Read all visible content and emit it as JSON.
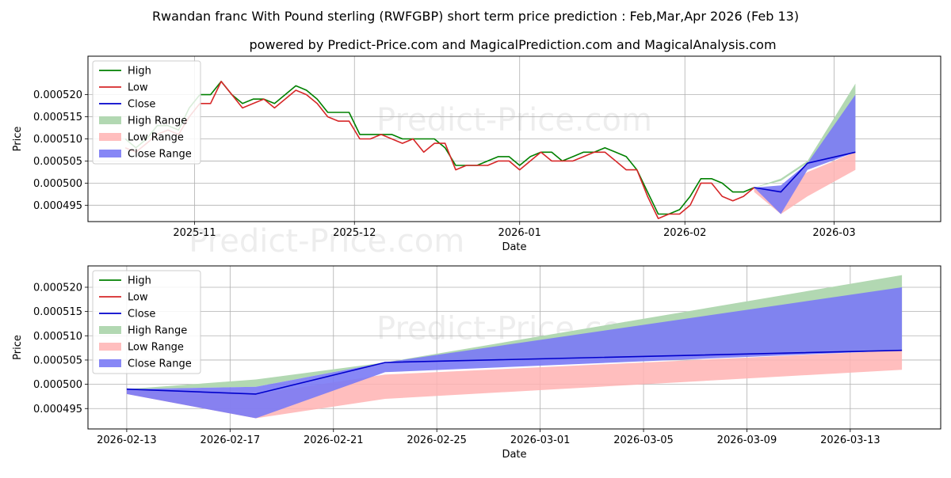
{
  "title": "Rwandan franc With Pound sterling (RWFGBP) short term price prediction : Feb,Mar,Apr 2026 (Feb 13)",
  "subtitle": "powered by Predict-Price.com and MagicalPrediction.com and MagicalAnalysis.com",
  "watermark": "Predict-Price.com",
  "colors": {
    "high": "#008000",
    "low": "#d62728",
    "close": "#0000cc",
    "high_range": "#b2d8b2",
    "low_range": "#ffb3b3",
    "close_range": "#7a7af5"
  },
  "chart_data": [
    {
      "type": "line",
      "name": "history-and-forecast",
      "xlabel": "Date",
      "ylabel": "Price",
      "x_ticks": [
        "2025-11",
        "2025-12",
        "2026-01",
        "2026-02",
        "2026-03"
      ],
      "x_tick_days": [
        20,
        50,
        81,
        112,
        140
      ],
      "y_ticks": [
        "0.000495",
        "0.000500",
        "0.000505",
        "0.000510",
        "0.000515",
        "0.000520"
      ],
      "y_tick_values": [
        0.000495,
        0.0005,
        0.000505,
        0.00051,
        0.000515,
        0.00052
      ],
      "xlim_days": [
        0,
        160
      ],
      "ylim": [
        0.0004913,
        0.0005287
      ],
      "x_note": "x values are days since 2025-10-12",
      "legend": [
        "High",
        "Low",
        "Close",
        "High Range",
        "Low Range",
        "Close Range"
      ],
      "legend_position": "upper left",
      "grid": true,
      "series": [
        {
          "name": "High",
          "x": [
            7,
            9,
            11,
            13,
            15,
            17,
            19,
            21,
            23,
            25,
            27,
            29,
            31,
            33,
            35,
            37,
            39,
            41,
            43,
            45,
            47,
            49,
            51,
            53,
            55,
            57,
            59,
            61,
            63,
            65,
            67,
            69,
            71,
            73,
            75,
            77,
            79,
            81,
            83,
            85,
            87,
            89,
            91,
            93,
            95,
            97,
            99,
            101,
            103,
            105,
            107,
            109,
            111,
            113,
            115,
            117,
            119,
            121,
            123,
            125
          ],
          "y": [
            0.00051,
            0.000508,
            0.00051,
            0.000513,
            0.000513,
            0.000512,
            0.000517,
            0.00052,
            0.00052,
            0.000523,
            0.00052,
            0.000518,
            0.000519,
            0.000519,
            0.000518,
            0.00052,
            0.000522,
            0.000521,
            0.000519,
            0.000516,
            0.000516,
            0.000516,
            0.000511,
            0.000511,
            0.000511,
            0.000511,
            0.00051,
            0.00051,
            0.00051,
            0.00051,
            0.000508,
            0.000504,
            0.000504,
            0.000504,
            0.000505,
            0.000506,
            0.000506,
            0.000504,
            0.000506,
            0.000507,
            0.000507,
            0.000505,
            0.000506,
            0.000507,
            0.000507,
            0.000508,
            0.000507,
            0.000506,
            0.000503,
            0.000498,
            0.000493,
            0.000493,
            0.000494,
            0.000497,
            0.000501,
            0.000501,
            0.0005,
            0.000498,
            0.000498,
            0.000499
          ]
        },
        {
          "name": "Low",
          "x": [
            7,
            9,
            11,
            13,
            15,
            17,
            19,
            21,
            23,
            25,
            27,
            29,
            31,
            33,
            35,
            37,
            39,
            41,
            43,
            45,
            47,
            49,
            51,
            53,
            55,
            57,
            59,
            61,
            63,
            65,
            67,
            69,
            71,
            73,
            75,
            77,
            79,
            81,
            83,
            85,
            87,
            89,
            91,
            93,
            95,
            97,
            99,
            101,
            103,
            105,
            107,
            109,
            111,
            113,
            115,
            117,
            119,
            121,
            123,
            125
          ],
          "y": [
            0.000508,
            0.000507,
            0.000509,
            0.000511,
            0.000512,
            0.000511,
            0.000515,
            0.000518,
            0.000518,
            0.000523,
            0.00052,
            0.000517,
            0.000518,
            0.000519,
            0.000517,
            0.000519,
            0.000521,
            0.00052,
            0.000518,
            0.000515,
            0.000514,
            0.000514,
            0.00051,
            0.00051,
            0.000511,
            0.00051,
            0.000509,
            0.00051,
            0.000507,
            0.000509,
            0.000509,
            0.000503,
            0.000504,
            0.000504,
            0.000504,
            0.000505,
            0.000505,
            0.000503,
            0.000505,
            0.000507,
            0.000505,
            0.000505,
            0.000505,
            0.000506,
            0.000507,
            0.000507,
            0.000505,
            0.000503,
            0.000503,
            0.000497,
            0.000492,
            0.000493,
            0.000493,
            0.000495,
            0.0005,
            0.0005,
            0.000497,
            0.000496,
            0.000497,
            0.000499
          ]
        },
        {
          "name": "Close",
          "x": [
            125,
            130,
            135,
            144
          ],
          "y": [
            0.000499,
            0.000498,
            0.0005045,
            0.000507
          ]
        }
      ],
      "ranges": [
        {
          "name": "High Range",
          "x": [
            125,
            130,
            135,
            144
          ],
          "lower": [
            0.000499,
            0.0005005,
            0.0005045,
            0.000507
          ],
          "upper": [
            0.000499,
            0.000501,
            0.000505,
            0.0005225
          ]
        },
        {
          "name": "Low Range",
          "x": [
            125,
            130,
            135,
            144
          ],
          "lower": [
            0.000498,
            0.000493,
            0.000497,
            0.000503
          ],
          "upper": [
            0.000499,
            0.0004985,
            0.0005025,
            0.000507
          ]
        },
        {
          "name": "Close Range",
          "x": [
            125,
            130,
            135,
            144
          ],
          "lower": [
            0.000499,
            0.000493,
            0.000503,
            0.000507
          ],
          "upper": [
            0.000499,
            0.0004995,
            0.0005045,
            0.00052
          ]
        }
      ]
    },
    {
      "type": "line",
      "name": "forecast-zoom",
      "xlabel": "Date",
      "ylabel": "Price",
      "x_ticks": [
        "2026-02-13",
        "2026-02-17",
        "2026-02-21",
        "2026-02-25",
        "2026-03-01",
        "2026-03-05",
        "2026-03-09",
        "2026-03-13"
      ],
      "x_tick_days": [
        0,
        4,
        8,
        12,
        16,
        20,
        24,
        28
      ],
      "y_ticks": [
        "0.000495",
        "0.000500",
        "0.000505",
        "0.000510",
        "0.000515",
        "0.000520"
      ],
      "y_tick_values": [
        0.000495,
        0.0005,
        0.000505,
        0.00051,
        0.000515,
        0.00052
      ],
      "xlim_days": [
        -1.5,
        31.5
      ],
      "ylim": [
        0.0004908,
        0.0005244
      ],
      "x_note": "x values are days since 2026-02-13",
      "legend": [
        "High",
        "Low",
        "Close",
        "High Range",
        "Low Range",
        "Close Range"
      ],
      "legend_position": "upper left",
      "grid": true,
      "series": [
        {
          "name": "Close",
          "x": [
            0,
            5,
            10,
            30
          ],
          "y": [
            0.000499,
            0.000498,
            0.0005045,
            0.000507
          ]
        }
      ],
      "ranges": [
        {
          "name": "High Range",
          "x": [
            0,
            5,
            10,
            30
          ],
          "lower": [
            0.000499,
            0.0004995,
            0.0005045,
            0.000507
          ],
          "upper": [
            0.000499,
            0.000501,
            0.0005045,
            0.0005225
          ]
        },
        {
          "name": "Low Range",
          "x": [
            0,
            5,
            10,
            30
          ],
          "lower": [
            0.000498,
            0.000493,
            0.000497,
            0.000503
          ],
          "upper": [
            0.000499,
            0.000498,
            0.000502,
            0.000507
          ]
        },
        {
          "name": "Close Range",
          "x": [
            0,
            5,
            10,
            30
          ],
          "lower": [
            0.000498,
            0.000493,
            0.0005025,
            0.000507
          ],
          "upper": [
            0.000499,
            0.0004995,
            0.0005045,
            0.00052
          ]
        }
      ]
    }
  ]
}
